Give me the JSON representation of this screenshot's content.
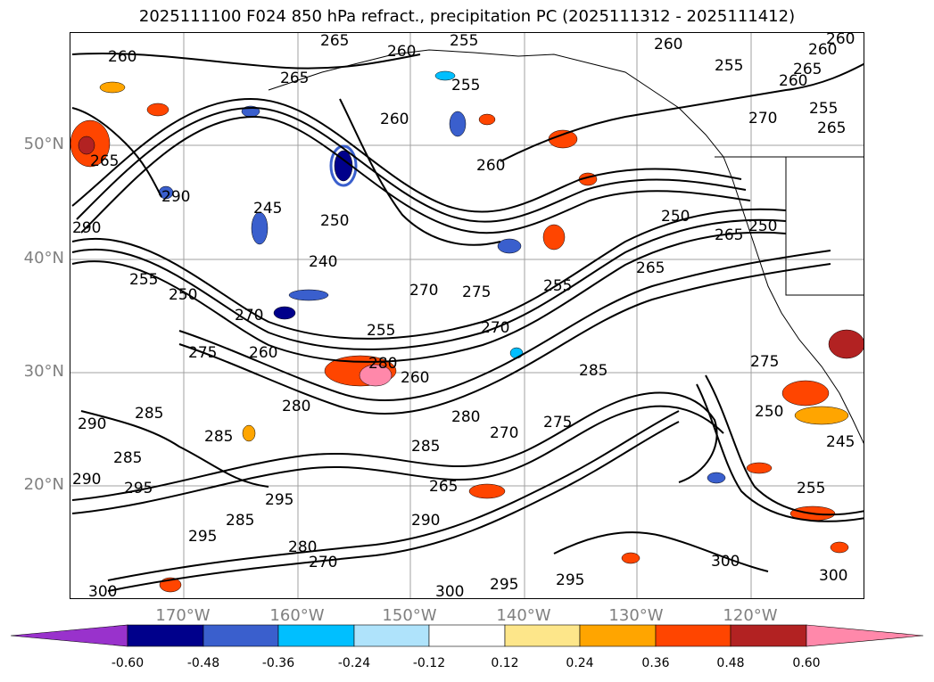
{
  "title": "2025111100 F024 850 hPa refract., precipitation PC (2025111312 - 2025111412)",
  "map": {
    "lat_labels": [
      "50°N",
      "40°N",
      "30°N",
      "20°N"
    ],
    "lon_labels": [
      "170°W",
      "160°W",
      "150°W",
      "140°W",
      "130°W",
      "120°W"
    ],
    "contour_color": "#000000",
    "gridline_color": "#a0a0a0",
    "contour_labels": [
      {
        "text": "260"
      },
      {
        "text": "265"
      },
      {
        "text": "255"
      },
      {
        "text": "260"
      },
      {
        "text": "260"
      },
      {
        "text": "260"
      },
      {
        "text": "255"
      },
      {
        "text": "260"
      },
      {
        "text": "265"
      },
      {
        "text": "255"
      },
      {
        "text": "265"
      },
      {
        "text": "260"
      },
      {
        "text": "270"
      },
      {
        "text": "255"
      },
      {
        "text": "265"
      },
      {
        "text": "260"
      },
      {
        "text": "250"
      },
      {
        "text": "245"
      },
      {
        "text": "240"
      },
      {
        "text": "270"
      },
      {
        "text": "275"
      },
      {
        "text": "270"
      },
      {
        "text": "255"
      },
      {
        "text": "250"
      },
      {
        "text": "290"
      },
      {
        "text": "255"
      },
      {
        "text": "250"
      },
      {
        "text": "270"
      },
      {
        "text": "275"
      },
      {
        "text": "260"
      },
      {
        "text": "255"
      },
      {
        "text": "265"
      },
      {
        "text": "260"
      },
      {
        "text": "285"
      },
      {
        "text": "280"
      },
      {
        "text": "285"
      },
      {
        "text": "280"
      },
      {
        "text": "270"
      },
      {
        "text": "275"
      },
      {
        "text": "285"
      },
      {
        "text": "285"
      },
      {
        "text": "290"
      },
      {
        "text": "285"
      },
      {
        "text": "290"
      },
      {
        "text": "295"
      },
      {
        "text": "295"
      },
      {
        "text": "285"
      },
      {
        "text": "295"
      },
      {
        "text": "280"
      },
      {
        "text": "270"
      },
      {
        "text": "290"
      },
      {
        "text": "265"
      },
      {
        "text": "300"
      },
      {
        "text": "295"
      },
      {
        "text": "300"
      },
      {
        "text": "295"
      },
      {
        "text": "300"
      },
      {
        "text": "300"
      },
      {
        "text": "255"
      },
      {
        "text": "275"
      },
      {
        "text": "250"
      },
      {
        "text": "245"
      },
      {
        "text": "265"
      },
      {
        "text": "250"
      },
      {
        "text": "290"
      },
      {
        "text": "280"
      },
      {
        "text": "265"
      },
      {
        "text": "260"
      }
    ],
    "precip_colors": [
      "#9932cc",
      "#00008b",
      "#3a5fcd",
      "#00bfff",
      "#afe3fb",
      "#ffffff",
      "#fde68a",
      "#ffa500",
      "#ff4500",
      "#b22222",
      "#ff88aa"
    ]
  },
  "colorbar": {
    "tick_labels": [
      "-0.60",
      "-0.48",
      "-0.36",
      "-0.24",
      "-0.12",
      "0.12",
      "0.24",
      "0.36",
      "0.48",
      "0.60"
    ],
    "colors": [
      "#9932cc",
      "#00008b",
      "#3a5fcd",
      "#00bfff",
      "#afe3fb",
      "#ffffff",
      "#fde68a",
      "#ffa500",
      "#ff4500",
      "#b22222",
      "#ff88aa"
    ]
  }
}
